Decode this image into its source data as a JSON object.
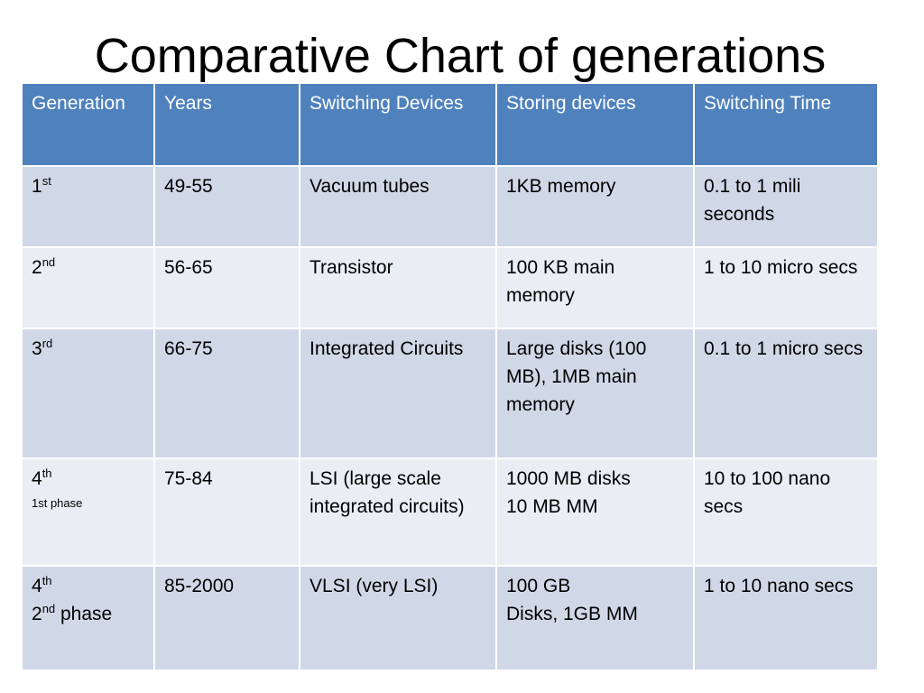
{
  "title": "Comparative Chart of generations",
  "table": {
    "headers": [
      "Generation",
      "Years",
      "Switching Devices",
      "Storing devices",
      "Switching Time"
    ],
    "rows": [
      {
        "generation": {
          "num": "1",
          "suffix": "st"
        },
        "years": "49-55",
        "switching_devices": "Vacuum tubes",
        "storing_devices": "1KB memory",
        "switching_time": "0.1 to 1 mili seconds"
      },
      {
        "generation": {
          "num": "2",
          "suffix": "nd"
        },
        "years": "56-65",
        "switching_devices": "Transistor",
        "storing_devices": "100 KB  main memory",
        "switching_time": "1 to 10 micro secs"
      },
      {
        "generation": {
          "num": "3",
          "suffix": "rd"
        },
        "years": "66-75",
        "switching_devices": "Integrated Circuits",
        "storing_devices": "Large disks (100 MB), 1MB main memory",
        "switching_time": "0.1 to 1 micro secs"
      },
      {
        "generation": {
          "num": "4",
          "suffix": "th",
          "phase": "1st phase"
        },
        "years": "75-84",
        "switching_devices": "LSI (large scale integrated circuits)",
        "storing_devices_lines": [
          "1000 MB disks",
          "10 MB MM"
        ],
        "switching_time": "10 to 100 nano secs"
      },
      {
        "generation": {
          "num": "4",
          "suffix": "th",
          "phase_num": "2",
          "phase_suffix": "nd",
          "phase_text": " phase"
        },
        "years": "85-2000",
        "switching_devices": "VLSI (very LSI)",
        "storing_devices_lines": [
          "100 GB",
          "Disks,  1GB MM"
        ],
        "switching_time": "1 to 10 nano secs"
      }
    ]
  }
}
